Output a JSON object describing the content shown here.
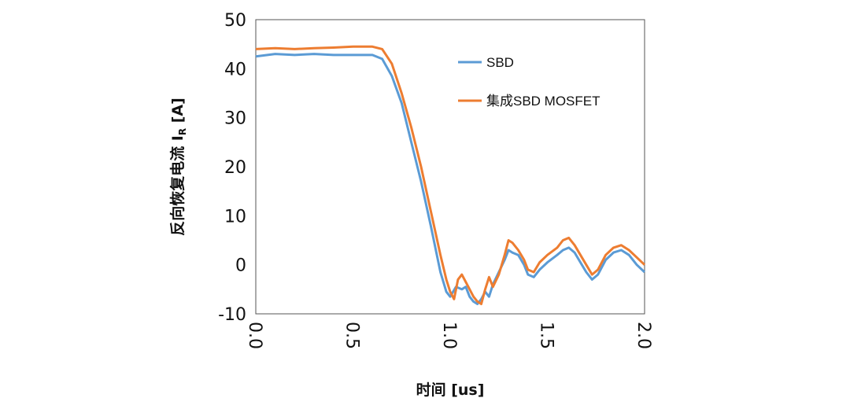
{
  "chart_data": {
    "type": "line",
    "title": "",
    "xlabel": "时间 [us]",
    "ylabel": "反向恢复电流 I_R [A]",
    "ylabel_main": "反向恢复电流 I",
    "ylabel_sub": "R",
    "ylabel_unit": " [A]",
    "xlim": [
      0.0,
      2.0
    ],
    "ylim": [
      -10,
      50
    ],
    "x_ticks": [
      "0.0",
      "0.5",
      "1.0",
      "1.5",
      "2.0"
    ],
    "y_ticks": [
      "-10",
      "0",
      "10",
      "20",
      "30",
      "40",
      "50"
    ],
    "grid": false,
    "legend_position": "top-right",
    "series": [
      {
        "name": "SBD",
        "color": "#5b9bd5",
        "points": [
          [
            0.0,
            42.5
          ],
          [
            0.1,
            43.0
          ],
          [
            0.2,
            42.8
          ],
          [
            0.3,
            43.0
          ],
          [
            0.4,
            42.8
          ],
          [
            0.5,
            42.8
          ],
          [
            0.6,
            42.8
          ],
          [
            0.65,
            42.0
          ],
          [
            0.7,
            38.5
          ],
          [
            0.75,
            33.0
          ],
          [
            0.8,
            25.0
          ],
          [
            0.85,
            17.0
          ],
          [
            0.9,
            8.0
          ],
          [
            0.95,
            -1.5
          ],
          [
            0.98,
            -5.5
          ],
          [
            1.0,
            -6.5
          ],
          [
            1.03,
            -4.5
          ],
          [
            1.06,
            -5.0
          ],
          [
            1.08,
            -4.5
          ],
          [
            1.1,
            -6.5
          ],
          [
            1.12,
            -7.5
          ],
          [
            1.14,
            -8.0
          ],
          [
            1.16,
            -7.0
          ],
          [
            1.18,
            -5.5
          ],
          [
            1.2,
            -6.5
          ],
          [
            1.22,
            -4.0
          ],
          [
            1.25,
            -1.5
          ],
          [
            1.28,
            1.0
          ],
          [
            1.3,
            3.0
          ],
          [
            1.32,
            2.5
          ],
          [
            1.35,
            2.0
          ],
          [
            1.38,
            0.0
          ],
          [
            1.4,
            -2.0
          ],
          [
            1.43,
            -2.5
          ],
          [
            1.46,
            -1.0
          ],
          [
            1.5,
            0.5
          ],
          [
            1.55,
            2.0
          ],
          [
            1.58,
            3.0
          ],
          [
            1.61,
            3.5
          ],
          [
            1.64,
            2.5
          ],
          [
            1.67,
            0.5
          ],
          [
            1.7,
            -1.5
          ],
          [
            1.73,
            -3.0
          ],
          [
            1.76,
            -2.0
          ],
          [
            1.8,
            1.0
          ],
          [
            1.84,
            2.5
          ],
          [
            1.88,
            3.0
          ],
          [
            1.92,
            2.0
          ],
          [
            1.96,
            0.0
          ],
          [
            2.0,
            -1.5
          ]
        ]
      },
      {
        "name": "集成SBD MOSFET",
        "color": "#ed7d31",
        "points": [
          [
            0.0,
            44.0
          ],
          [
            0.1,
            44.2
          ],
          [
            0.2,
            44.0
          ],
          [
            0.3,
            44.2
          ],
          [
            0.4,
            44.3
          ],
          [
            0.5,
            44.5
          ],
          [
            0.55,
            44.5
          ],
          [
            0.6,
            44.5
          ],
          [
            0.65,
            44.0
          ],
          [
            0.7,
            41.0
          ],
          [
            0.75,
            35.0
          ],
          [
            0.8,
            28.0
          ],
          [
            0.85,
            20.0
          ],
          [
            0.9,
            11.0
          ],
          [
            0.95,
            2.0
          ],
          [
            0.98,
            -3.0
          ],
          [
            1.0,
            -5.5
          ],
          [
            1.02,
            -7.0
          ],
          [
            1.04,
            -3.0
          ],
          [
            1.06,
            -2.0
          ],
          [
            1.08,
            -3.5
          ],
          [
            1.1,
            -5.0
          ],
          [
            1.12,
            -6.5
          ],
          [
            1.14,
            -7.5
          ],
          [
            1.16,
            -8.0
          ],
          [
            1.18,
            -5.0
          ],
          [
            1.2,
            -2.5
          ],
          [
            1.22,
            -4.5
          ],
          [
            1.25,
            -2.0
          ],
          [
            1.28,
            2.0
          ],
          [
            1.3,
            5.0
          ],
          [
            1.32,
            4.5
          ],
          [
            1.35,
            3.0
          ],
          [
            1.38,
            1.0
          ],
          [
            1.4,
            -1.0
          ],
          [
            1.43,
            -1.5
          ],
          [
            1.46,
            0.5
          ],
          [
            1.5,
            2.0
          ],
          [
            1.55,
            3.5
          ],
          [
            1.58,
            5.0
          ],
          [
            1.61,
            5.5
          ],
          [
            1.64,
            4.0
          ],
          [
            1.67,
            2.0
          ],
          [
            1.7,
            0.0
          ],
          [
            1.73,
            -2.0
          ],
          [
            1.76,
            -1.0
          ],
          [
            1.8,
            2.0
          ],
          [
            1.84,
            3.5
          ],
          [
            1.88,
            4.0
          ],
          [
            1.92,
            3.0
          ],
          [
            1.96,
            1.5
          ],
          [
            2.0,
            0.0
          ]
        ]
      }
    ]
  }
}
